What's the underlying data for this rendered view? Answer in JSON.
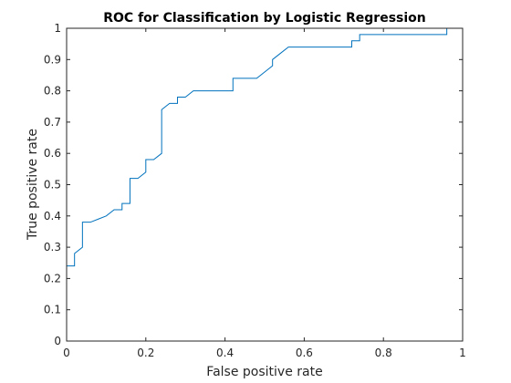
{
  "chart_data": {
    "type": "line",
    "title": "ROC for Classification by Logistic Regression",
    "xlabel": "False positive rate",
    "ylabel": "True positive rate",
    "xlim": [
      0,
      1
    ],
    "ylim": [
      0,
      1
    ],
    "xticks": [
      0,
      0.2,
      0.4,
      0.6,
      0.8,
      1
    ],
    "xtick_labels": [
      "0",
      "0.2",
      "0.4",
      "0.6",
      "0.8",
      "1"
    ],
    "yticks": [
      0,
      0.1,
      0.2,
      0.3,
      0.4,
      0.5,
      0.6,
      0.7,
      0.8,
      0.9,
      1
    ],
    "ytick_labels": [
      "0",
      "0.1",
      "0.2",
      "0.3",
      "0.4",
      "0.5",
      "0.6",
      "0.7",
      "0.8",
      "0.9",
      "1"
    ],
    "grid": false,
    "line_color": "#0072BD",
    "series": [
      {
        "x": [
          0,
          0,
          0.02,
          0.02,
          0.04,
          0.04,
          0.06,
          0.08,
          0.1,
          0.12,
          0.14,
          0.14,
          0.16,
          0.16,
          0.18,
          0.2,
          0.2,
          0.22,
          0.24,
          0.24,
          0.26,
          0.28,
          0.28,
          0.3,
          0.32,
          0.34,
          0.36,
          0.38,
          0.4,
          0.42,
          0.42,
          0.44,
          0.46,
          0.48,
          0.5,
          0.52,
          0.52,
          0.54,
          0.56,
          0.58,
          0.6,
          0.62,
          0.64,
          0.66,
          0.68,
          0.7,
          0.72,
          0.72,
          0.74,
          0.74,
          0.76,
          0.8,
          0.84,
          0.88,
          0.92,
          0.96,
          0.96,
          1
        ],
        "y": [
          0,
          0.24,
          0.24,
          0.28,
          0.3,
          0.38,
          0.38,
          0.39,
          0.4,
          0.42,
          0.42,
          0.44,
          0.44,
          0.52,
          0.52,
          0.54,
          0.58,
          0.58,
          0.6,
          0.74,
          0.76,
          0.76,
          0.78,
          0.78,
          0.8,
          0.8,
          0.8,
          0.8,
          0.8,
          0.8,
          0.84,
          0.84,
          0.84,
          0.84,
          0.86,
          0.88,
          0.9,
          0.92,
          0.94,
          0.94,
          0.94,
          0.94,
          0.94,
          0.94,
          0.94,
          0.94,
          0.94,
          0.96,
          0.96,
          0.98,
          0.98,
          0.98,
          0.98,
          0.98,
          0.98,
          0.98,
          1,
          1
        ]
      }
    ]
  }
}
